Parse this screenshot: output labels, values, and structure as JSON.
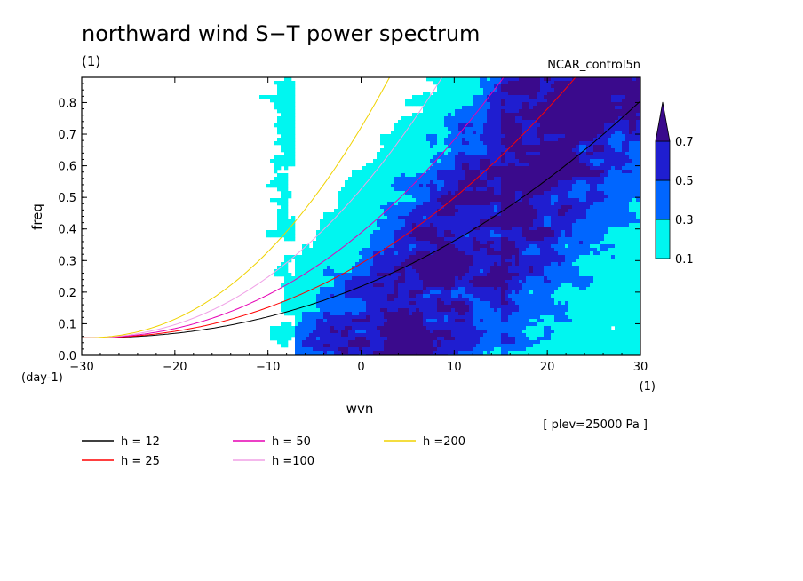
{
  "chart_data": {
    "type": "heatmap",
    "title": "northward wind S−T power spectrum",
    "title_unit": "(1)",
    "dataset": "NCAR_control5n",
    "xlabel": "wvn",
    "xunit": "(1)",
    "ylabel": "freq",
    "yunit": "(day-1)",
    "xlim": [
      -30,
      30
    ],
    "ylim": [
      0,
      0.88
    ],
    "xticks": [
      "−30",
      "−20",
      "−10",
      "0",
      "10",
      "20",
      "30"
    ],
    "xtick_values": [
      -30,
      -20,
      -10,
      0,
      10,
      20,
      30
    ],
    "yticks": [
      "0.0",
      "0.1",
      "0.2",
      "0.3",
      "0.4",
      "0.5",
      "0.6",
      "0.7",
      "0.8"
    ],
    "ytick_values": [
      0,
      0.1,
      0.2,
      0.3,
      0.4,
      0.5,
      0.6,
      0.7,
      0.8
    ],
    "note": "[ plev=25000 Pa ]",
    "colorbar": {
      "levels": [
        "0.1",
        "0.3",
        "0.5",
        "0.7"
      ],
      "level_values": [
        0.1,
        0.3,
        0.5,
        0.7
      ],
      "colors": [
        "#00f6f0",
        "#0066ff",
        "#1f1ed0",
        "#3a0a8c"
      ]
    },
    "series": [
      {
        "name": "h = 12",
        "h": 12,
        "color": "#000000"
      },
      {
        "name": "h = 25",
        "h": 25,
        "color": "#ff0000"
      },
      {
        "name": "h = 50",
        "h": 50,
        "color": "#e600b4"
      },
      {
        "name": "h =100",
        "h": 100,
        "color": "#f0a0e6"
      },
      {
        "name": "h =200",
        "h": 200,
        "color": "#f0d200"
      }
    ]
  }
}
